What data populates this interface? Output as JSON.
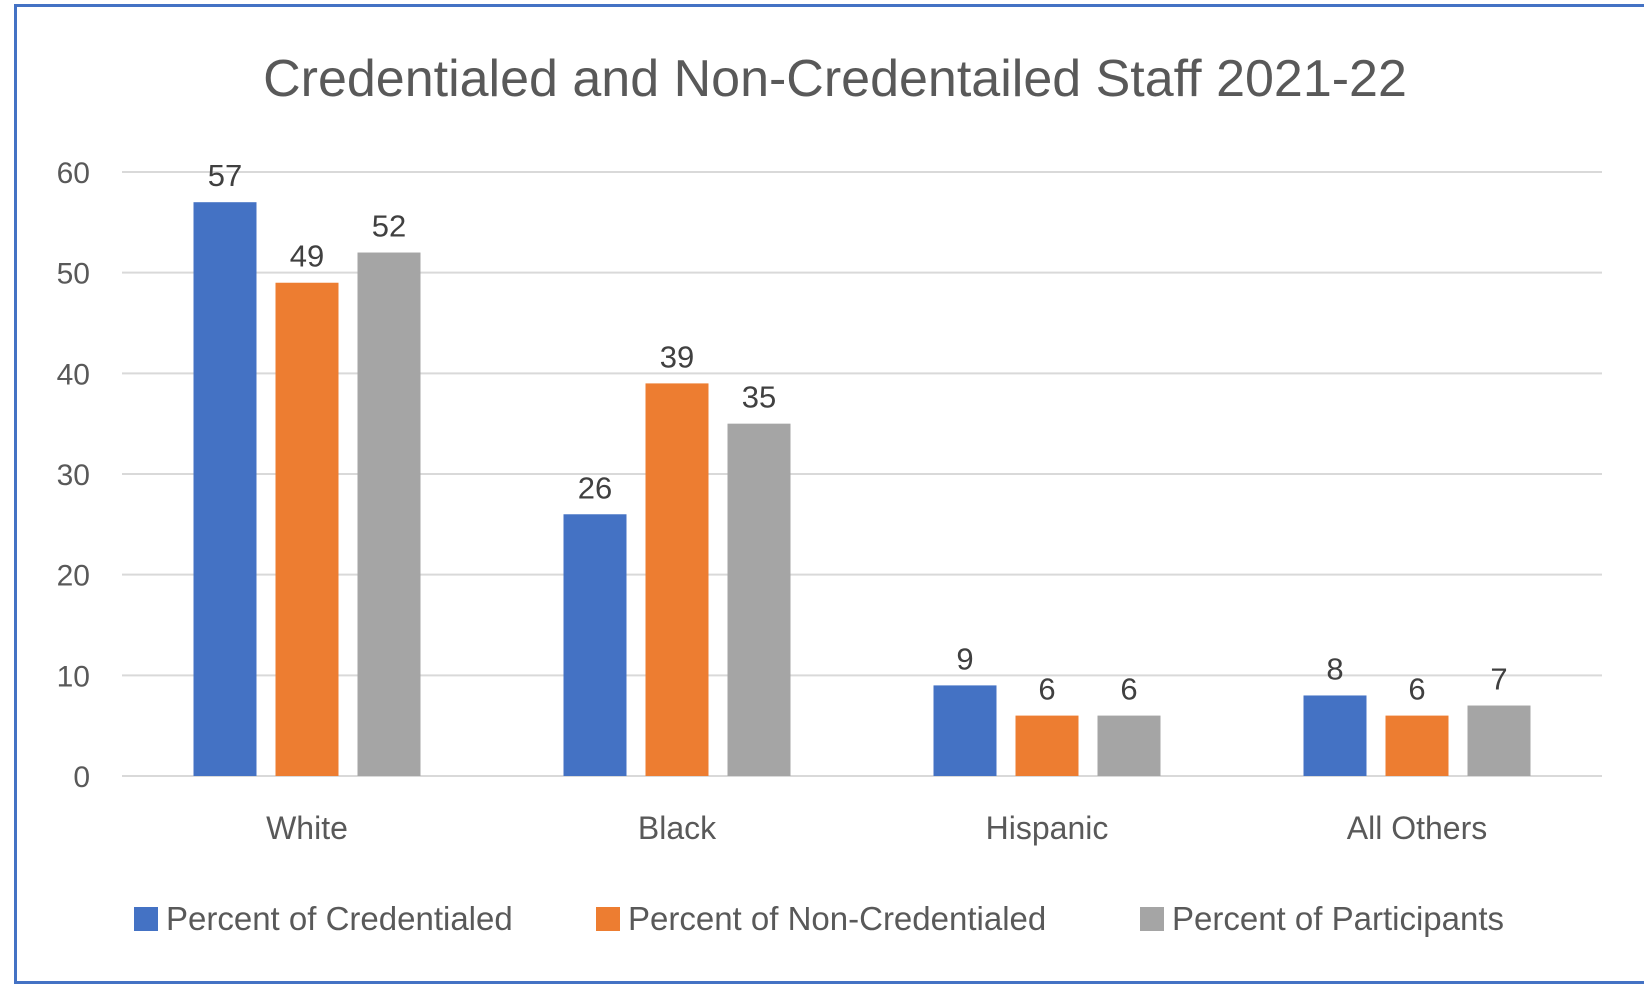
{
  "chart_data": {
    "type": "bar",
    "title": "Credentialed and Non-Credentailed Staff 2021-22",
    "categories": [
      "White",
      "Black",
      "Hispanic",
      "All Others"
    ],
    "series": [
      {
        "name": "Percent of Credentialed",
        "color": "#4472c4",
        "values": [
          57,
          26,
          9,
          8
        ]
      },
      {
        "name": "Percent of Non-Credentialed",
        "color": "#ed7d31",
        "values": [
          49,
          39,
          6,
          6
        ]
      },
      {
        "name": "Percent of Participants",
        "color": "#a5a5a5",
        "values": [
          52,
          35,
          6,
          7
        ]
      }
    ],
    "yticks": [
      0,
      10,
      20,
      30,
      40,
      50,
      60
    ],
    "ylim": [
      0,
      60
    ],
    "grid": true,
    "legend_position": "bottom"
  }
}
